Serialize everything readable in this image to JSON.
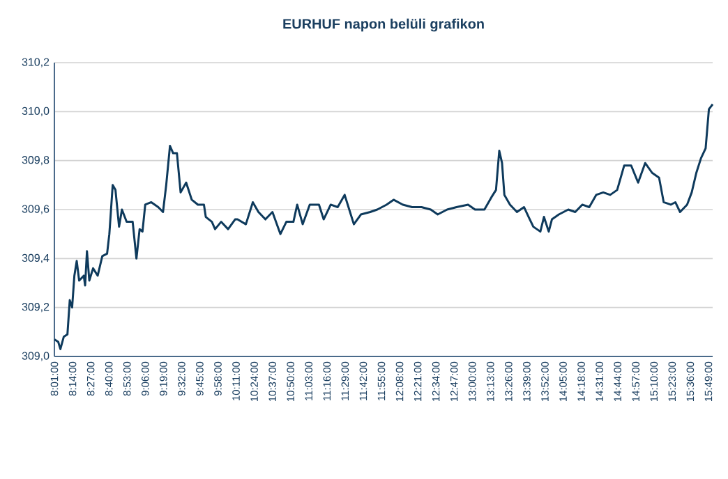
{
  "chart_data": {
    "type": "line",
    "title": "EURHUF  napon belüli grafikon",
    "x": [
      8.017,
      8.062,
      8.088,
      8.128,
      8.172,
      8.2,
      8.228,
      8.255,
      8.283,
      8.312,
      8.367,
      8.383,
      8.405,
      8.433,
      8.478,
      8.533,
      8.588,
      8.645,
      8.672,
      8.712,
      8.745,
      8.788,
      8.822,
      8.878,
      8.95,
      8.995,
      9.033,
      9.067,
      9.1,
      9.172,
      9.255,
      9.312,
      9.35,
      9.395,
      9.433,
      9.478,
      9.522,
      9.588,
      9.655,
      9.728,
      9.8,
      9.822,
      9.895,
      9.933,
      10.005,
      10.088,
      10.172,
      10.2,
      10.3,
      10.383,
      10.45,
      10.533,
      10.617,
      10.712,
      10.783,
      10.867,
      10.912,
      10.978,
      11.062,
      11.172,
      11.228,
      11.312,
      11.395,
      11.478,
      11.533,
      11.588,
      11.672,
      11.783,
      11.867,
      11.978,
      12.062,
      12.172,
      12.283,
      12.395,
      12.505,
      12.588,
      12.7,
      12.812,
      12.95,
      13.033,
      13.145,
      13.228,
      13.283,
      13.322,
      13.355,
      13.383,
      13.45,
      13.533,
      13.617,
      13.672,
      13.728,
      13.812,
      13.855,
      13.912,
      13.95,
      14.033,
      14.145,
      14.228,
      14.312,
      14.395,
      14.478,
      14.562,
      14.645,
      14.728,
      14.812,
      14.895,
      14.978,
      15.062,
      15.145,
      15.228,
      15.283,
      15.367,
      15.422,
      15.478,
      15.562,
      15.617,
      15.672,
      15.728,
      15.783,
      15.822,
      15.867
    ],
    "series": [
      {
        "color": "#0e3a5c",
        "values": [
          309.07,
          309.06,
          309.03,
          309.08,
          309.09,
          309.23,
          309.2,
          309.33,
          309.39,
          309.31,
          309.33,
          309.29,
          309.43,
          309.31,
          309.36,
          309.33,
          309.41,
          309.42,
          309.5,
          309.7,
          309.68,
          309.53,
          309.6,
          309.55,
          309.55,
          309.4,
          309.52,
          309.51,
          309.62,
          309.63,
          309.61,
          309.59,
          309.7,
          309.86,
          309.83,
          309.83,
          309.67,
          309.71,
          309.64,
          309.62,
          309.62,
          309.57,
          309.55,
          309.52,
          309.55,
          309.52,
          309.56,
          309.56,
          309.54,
          309.63,
          309.59,
          309.56,
          309.59,
          309.5,
          309.55,
          309.55,
          309.62,
          309.54,
          309.62,
          309.62,
          309.56,
          309.62,
          309.61,
          309.66,
          309.6,
          309.54,
          309.58,
          309.59,
          309.6,
          309.62,
          309.64,
          309.62,
          309.61,
          309.61,
          309.6,
          309.58,
          309.6,
          309.61,
          309.62,
          309.6,
          309.6,
          309.65,
          309.68,
          309.84,
          309.79,
          309.66,
          309.62,
          309.59,
          309.61,
          309.57,
          309.53,
          309.51,
          309.57,
          309.51,
          309.56,
          309.58,
          309.6,
          309.59,
          309.62,
          309.61,
          309.66,
          309.67,
          309.66,
          309.68,
          309.78,
          309.78,
          309.71,
          309.79,
          309.75,
          309.73,
          309.63,
          309.62,
          309.63,
          309.59,
          309.62,
          309.67,
          309.75,
          309.81,
          309.85,
          310.01,
          310.03
        ]
      }
    ],
    "xlim": [
      8.016667,
      15.867
    ],
    "xticks": [
      {
        "value": 8.016667,
        "label": "8:01:00"
      },
      {
        "value": 8.233333,
        "label": "8:14:00"
      },
      {
        "value": 8.45,
        "label": "8:27:00"
      },
      {
        "value": 8.666667,
        "label": "8:40:00"
      },
      {
        "value": 8.883333,
        "label": "8:53:00"
      },
      {
        "value": 9.1,
        "label": "9:06:00"
      },
      {
        "value": 9.316667,
        "label": "9:19:00"
      },
      {
        "value": 9.533333,
        "label": "9:32:00"
      },
      {
        "value": 9.75,
        "label": "9:45:00"
      },
      {
        "value": 9.966667,
        "label": "9:58:00"
      },
      {
        "value": 10.183333,
        "label": "10:11:00"
      },
      {
        "value": 10.4,
        "label": "10:24:00"
      },
      {
        "value": 10.616667,
        "label": "10:37:00"
      },
      {
        "value": 10.833333,
        "label": "10:50:00"
      },
      {
        "value": 11.05,
        "label": "11:03:00"
      },
      {
        "value": 11.266667,
        "label": "11:16:00"
      },
      {
        "value": 11.483333,
        "label": "11:29:00"
      },
      {
        "value": 11.7,
        "label": "11:42:00"
      },
      {
        "value": 11.916667,
        "label": "11:55:00"
      },
      {
        "value": 12.133333,
        "label": "12:08:00"
      },
      {
        "value": 12.35,
        "label": "12:21:00"
      },
      {
        "value": 12.566667,
        "label": "12:34:00"
      },
      {
        "value": 12.783333,
        "label": "12:47:00"
      },
      {
        "value": 13.0,
        "label": "13:00:00"
      },
      {
        "value": 13.216667,
        "label": "13:13:00"
      },
      {
        "value": 13.433333,
        "label": "13:26:00"
      },
      {
        "value": 13.65,
        "label": "13:39:00"
      },
      {
        "value": 13.866667,
        "label": "13:52:00"
      },
      {
        "value": 14.083333,
        "label": "14:05:00"
      },
      {
        "value": 14.3,
        "label": "14:18:00"
      },
      {
        "value": 14.516667,
        "label": "14:31:00"
      },
      {
        "value": 14.733333,
        "label": "14:44:00"
      },
      {
        "value": 14.95,
        "label": "14:57:00"
      },
      {
        "value": 15.166667,
        "label": "15:10:00"
      },
      {
        "value": 15.383333,
        "label": "15:23:00"
      },
      {
        "value": 15.6,
        "label": "15:36:00"
      },
      {
        "value": 15.816667,
        "label": "15:49:00"
      }
    ],
    "ylim": [
      309.0,
      310.2
    ],
    "yticks": [
      {
        "value": 309.0,
        "label": "309,0"
      },
      {
        "value": 309.2,
        "label": "309,2"
      },
      {
        "value": 309.4,
        "label": "309,4"
      },
      {
        "value": 309.6,
        "label": "309,6"
      },
      {
        "value": 309.8,
        "label": "309,8"
      },
      {
        "value": 310.0,
        "label": "310,0"
      },
      {
        "value": 310.2,
        "label": "310,2"
      }
    ],
    "grid": "y",
    "marker": "none",
    "line_style": "solid"
  }
}
